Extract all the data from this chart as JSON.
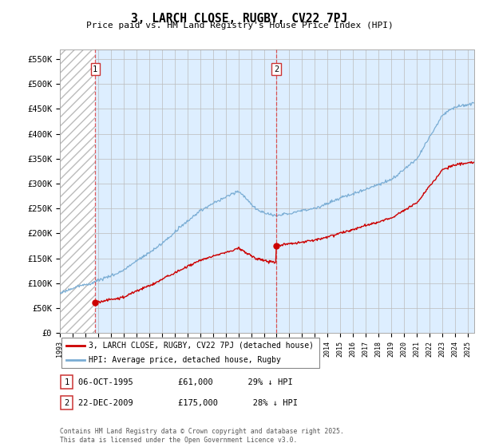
{
  "title": "3, LARCH CLOSE, RUGBY, CV22 7PJ",
  "subtitle": "Price paid vs. HM Land Registry's House Price Index (HPI)",
  "ylim": [
    0,
    570000
  ],
  "yticks": [
    0,
    50000,
    100000,
    150000,
    200000,
    250000,
    300000,
    350000,
    400000,
    450000,
    500000,
    550000
  ],
  "ytick_labels": [
    "£0",
    "£50K",
    "£100K",
    "£150K",
    "£200K",
    "£250K",
    "£300K",
    "£350K",
    "£400K",
    "£450K",
    "£500K",
    "£550K"
  ],
  "sale1_year": 1995.77,
  "sale1_price": 61000,
  "sale2_year": 2009.98,
  "sale2_price": 175000,
  "line_red_color": "#cc0000",
  "line_blue_color": "#7aadd4",
  "chart_bg_color": "#ddeeff",
  "hatch_color": "#bbbbbb",
  "grid_color": "#bbbbbb",
  "background_color": "#ffffff",
  "legend_line1": "3, LARCH CLOSE, RUGBY, CV22 7PJ (detached house)",
  "legend_line2": "HPI: Average price, detached house, Rugby",
  "table_row1": [
    "1",
    "06-OCT-1995",
    "£61,000",
    "29% ↓ HPI"
  ],
  "table_row2": [
    "2",
    "22-DEC-2009",
    "£175,000",
    "28% ↓ HPI"
  ],
  "footnote": "Contains HM Land Registry data © Crown copyright and database right 2025.\nThis data is licensed under the Open Government Licence v3.0.",
  "xmin": 1993,
  "xmax": 2025.5
}
